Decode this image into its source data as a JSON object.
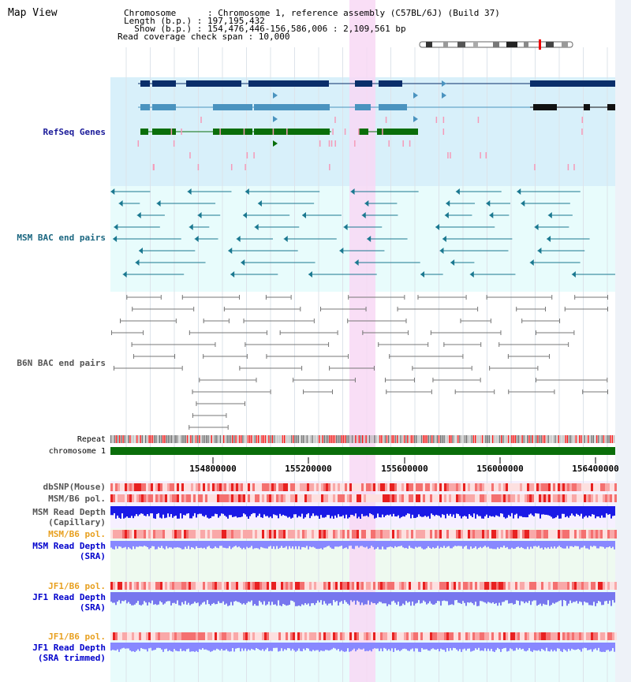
{
  "view_title": "Map View",
  "info": {
    "chromosome": "Chromosome      : Chromosome 1, reference assembly (C57BL/6J) (Build 37)",
    "length": "Length (b.p.) : 197,195,432",
    "show": "  Show (b.p.) : 154,476,446-156,586,006 : 2,109,561 bp",
    "coverage": "Read coverage check span : 10,000"
  },
  "tracks": {
    "refseq": "RefSeq Genes",
    "msm_bac": "MSM BAC end pairs",
    "b6n_bac": "B6N BAC end pairs",
    "repeat": "Repeat",
    "chromosome": "chromosome 1",
    "dbsnp": "dbSNP(Mouse)",
    "msm_b6_pol_1": "MSM/B6 pol.",
    "msm_depth_cap_1": "MSM Read Depth",
    "msm_depth_cap_2": "(Capillary)",
    "msm_b6_pol_2": "MSM/B6 pol.",
    "msm_depth_sra_1": "MSM Read Depth",
    "msm_depth_sra_2": "(SRA)",
    "jf1_pol_1": "JF1/B6 pol.",
    "jf1_depth_sra_1": "JF1 Read Depth",
    "jf1_depth_sra_2": "(SRA)",
    "jf1_pol_2": "JF1/B6 pol.",
    "jf1_depth_trim_1": "JF1 Read Depth",
    "jf1_depth_trim_2": "(SRA trimmed)"
  },
  "axis_ticks": [
    "154800000",
    "155200000",
    "155600000",
    "156000000",
    "156400000"
  ],
  "colors": {
    "refseq_bg": "#d8f0fa",
    "bac_bg": "#e8fcfc",
    "highlight": "#f8d8f4",
    "navy": "#0a2e6a",
    "steel": "#4a93bf",
    "green": "#0a6e0a",
    "teal": "#1a7890",
    "gray": "#777777",
    "label_navy": "#1a1a99",
    "label_teal": "#1a6680",
    "label_gray": "#555555",
    "label_orange": "#e8a020",
    "label_blue": "#0000cc"
  }
}
